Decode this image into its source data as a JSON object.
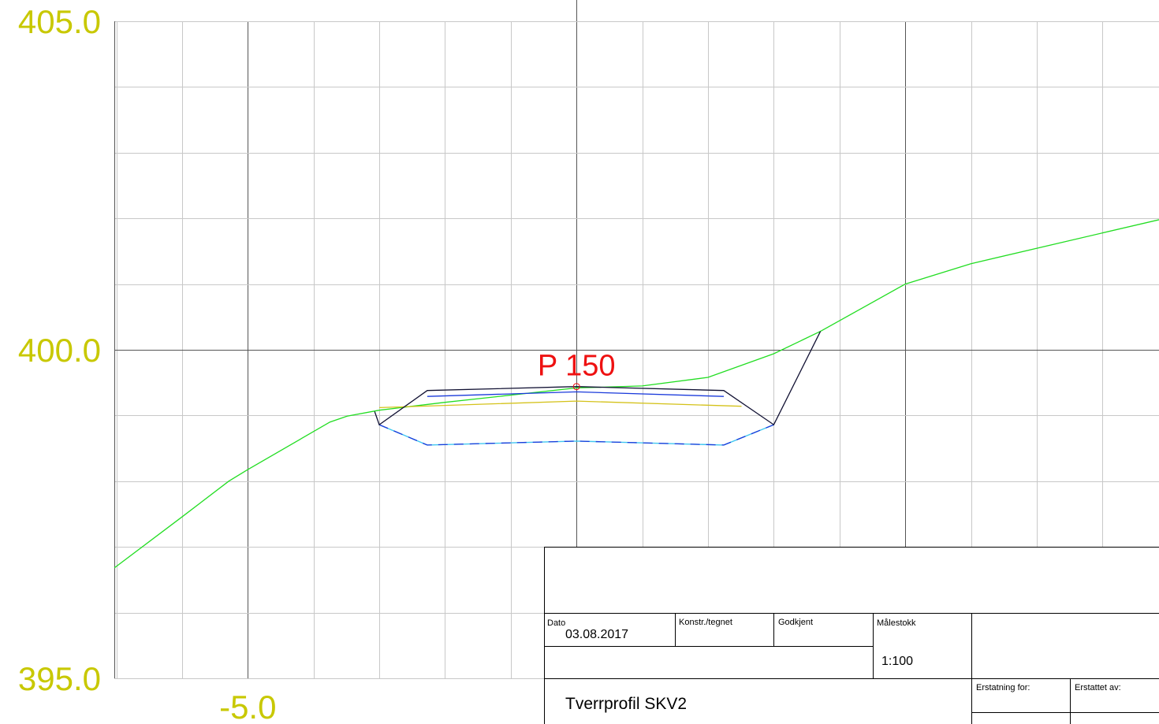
{
  "chart_data": {
    "type": "line",
    "xlim": [
      -7.03,
      8.86
    ],
    "ylim": [
      395,
      405
    ],
    "xticks": [
      {
        "value": -5,
        "label": "-5.0"
      }
    ],
    "yticks": [
      {
        "value": 395,
        "label": "395.0"
      },
      {
        "value": 400,
        "label": "400.0"
      },
      {
        "value": 405,
        "label": "405.0"
      }
    ],
    "grid": true,
    "xgrid": [
      -7,
      -6,
      -5,
      -4,
      -3,
      -2,
      -1,
      0,
      1,
      2,
      3,
      4,
      5,
      6,
      7,
      8
    ],
    "ygrid": [
      395,
      396,
      397,
      398,
      399,
      400,
      401,
      402,
      403,
      404,
      405
    ],
    "xmajor": [
      -5,
      0,
      5
    ],
    "ymajor": [
      400
    ],
    "tick_color": "#c8c800",
    "series": [
      {
        "color": "#22dd22",
        "x": [
          -7.03,
          -6.01,
          -5.29,
          -5.01,
          -3.75,
          -3.49,
          -3.0,
          -2.0,
          0,
          1.0,
          2.0,
          3.0,
          3.71,
          5.0,
          6.0,
          8.86
        ],
        "values": [
          396.68,
          397.45,
          398.0,
          398.17,
          398.9,
          398.99,
          399.08,
          399.2,
          399.42,
          399.45,
          399.58,
          399.94,
          400.28,
          401.0,
          401.31,
          401.98
        ]
      },
      {
        "color": "#d4c21a",
        "x": [
          -3.0,
          0,
          2.51
        ],
        "values": [
          399.12,
          399.22,
          399.14
        ]
      },
      {
        "color": "#1a3adb",
        "x": [
          -2.27,
          0,
          2.24
        ],
        "values": [
          399.29,
          399.36,
          399.29
        ]
      },
      {
        "color": "#1a3adb",
        "under_color": "#40c8f0",
        "dashed": true,
        "x": [
          -3.0,
          -2.27,
          0,
          2.24,
          3.0
        ],
        "values": [
          398.86,
          398.55,
          398.61,
          398.55,
          398.86
        ]
      },
      {
        "color": "#111133",
        "x": [
          -3.07,
          -3.0,
          -2.27,
          0,
          2.24,
          3.0,
          3.71
        ],
        "values": [
          399.06,
          398.86,
          399.38,
          399.44,
          399.38,
          398.86,
          400.28
        ]
      }
    ],
    "annotation": {
      "text": "P 150",
      "x": 0,
      "y": 399.44,
      "color": "#ee1111"
    }
  },
  "title_block": {
    "date_label": "Dato",
    "date": "03.08.2017",
    "drawn_label": "Konstr./tegnet",
    "approved_label": "Godkjent",
    "scale_label": "Målestokk",
    "scale": "1:100",
    "replaces_label": "Erstatning for:",
    "replaced_by_label": "Erstattet av:",
    "title": "Tverrprofil SKV2"
  }
}
